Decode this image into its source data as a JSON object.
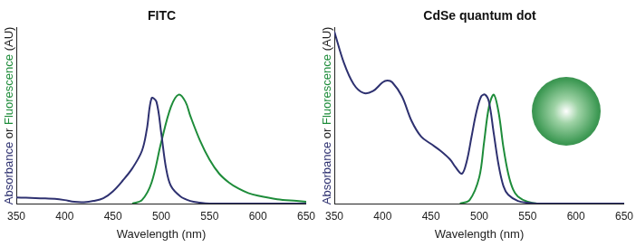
{
  "chart_data": [
    {
      "type": "line",
      "title": "FITC",
      "xlabel": "Wavelength (nm)",
      "ylabel": "Absorbance or Fluorescence (AU)",
      "xlim": [
        350,
        650
      ],
      "xticks": [
        350,
        400,
        450,
        500,
        550,
        600,
        650
      ],
      "ylim": [
        0,
        1
      ],
      "grid": false,
      "tick_labels": "x",
      "series": [
        {
          "name": "Absorbance",
          "color": "#2e3170",
          "x": [
            350,
            360,
            370,
            380,
            390,
            400,
            410,
            420,
            430,
            440,
            450,
            460,
            470,
            480,
            485,
            490,
            495,
            500,
            505,
            510,
            520,
            530,
            540,
            550,
            600,
            650
          ],
          "values": [
            0.035,
            0.033,
            0.031,
            0.029,
            0.027,
            0.02,
            0.01,
            0.008,
            0.015,
            0.03,
            0.07,
            0.13,
            0.2,
            0.3,
            0.42,
            0.6,
            0.58,
            0.4,
            0.2,
            0.1,
            0.04,
            0.015,
            0.005,
            0.0,
            0.0,
            0.0
          ]
        },
        {
          "name": "Fluorescence",
          "color": "#1e8c3a",
          "x": [
            470,
            480,
            490,
            500,
            510,
            518,
            525,
            530,
            540,
            550,
            560,
            570,
            580,
            590,
            600,
            620,
            640,
            650
          ],
          "values": [
            0.0,
            0.02,
            0.12,
            0.35,
            0.55,
            0.62,
            0.58,
            0.5,
            0.36,
            0.25,
            0.17,
            0.12,
            0.085,
            0.06,
            0.045,
            0.025,
            0.015,
            0.01
          ]
        }
      ]
    },
    {
      "type": "line",
      "title": "CdSe quantum dot",
      "xlabel": "Wavelength (nm)",
      "ylabel": "Absorbance or Fluorescence (AU)",
      "xlim": [
        350,
        650
      ],
      "xticks": [
        350,
        400,
        450,
        500,
        550,
        600,
        650
      ],
      "ylim": [
        0,
        1
      ],
      "grid": false,
      "tick_labels": "x",
      "series": [
        {
          "name": "Absorbance",
          "color": "#2e3170",
          "x": [
            350,
            360,
            370,
            380,
            390,
            400,
            405,
            410,
            420,
            430,
            440,
            450,
            460,
            470,
            475,
            482,
            487,
            492,
            497,
            502,
            506,
            510,
            515,
            520,
            525,
            530,
            540,
            550,
            560,
            650
          ],
          "values": [
            0.98,
            0.8,
            0.68,
            0.63,
            0.64,
            0.69,
            0.7,
            0.69,
            0.61,
            0.47,
            0.38,
            0.34,
            0.3,
            0.25,
            0.21,
            0.17,
            0.24,
            0.38,
            0.52,
            0.61,
            0.62,
            0.58,
            0.4,
            0.22,
            0.1,
            0.05,
            0.015,
            0.005,
            0.0,
            0.0
          ]
        },
        {
          "name": "Fluorescence",
          "color": "#1e8c3a",
          "x": [
            480,
            490,
            500,
            505,
            510,
            515,
            520,
            525,
            530,
            535,
            540,
            550,
            560,
            650
          ],
          "values": [
            0.0,
            0.02,
            0.15,
            0.35,
            0.55,
            0.62,
            0.52,
            0.32,
            0.17,
            0.08,
            0.04,
            0.01,
            0.0,
            0.0
          ]
        }
      ]
    }
  ]
}
